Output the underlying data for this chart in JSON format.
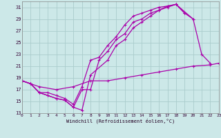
{
  "xlabel": "Windchill (Refroidissement éolien,°C)",
  "xlim": [
    0,
    23
  ],
  "ylim": [
    13,
    32
  ],
  "xticks": [
    0,
    1,
    2,
    3,
    4,
    5,
    6,
    7,
    8,
    9,
    10,
    11,
    12,
    13,
    14,
    15,
    16,
    17,
    18,
    19,
    20,
    21,
    22,
    23
  ],
  "yticks": [
    13,
    15,
    17,
    19,
    21,
    23,
    25,
    27,
    29,
    31
  ],
  "bg_color": "#cce8e8",
  "grid_color": "#aacccc",
  "line_color": "#aa00aa",
  "lines": [
    {
      "x": [
        0,
        1,
        2,
        3,
        4,
        5,
        6,
        7,
        8,
        10,
        11,
        12,
        13,
        14,
        15,
        16,
        17,
        18,
        19,
        20,
        21,
        22
      ],
      "y": [
        18.5,
        18.0,
        16.5,
        16.0,
        15.5,
        15.2,
        14.0,
        13.5,
        19.5,
        22.0,
        24.5,
        25.5,
        27.5,
        28.5,
        29.5,
        30.5,
        31.0,
        31.5,
        30.0,
        29.0,
        23.0,
        21.5
      ]
    },
    {
      "x": [
        0,
        1,
        2,
        3,
        4,
        5,
        6,
        7,
        8,
        9,
        10,
        11,
        12,
        13,
        14,
        15,
        16,
        17,
        18,
        19
      ],
      "y": [
        18.5,
        18.0,
        16.5,
        16.0,
        15.5,
        15.2,
        14.0,
        17.0,
        17.0,
        22.0,
        23.5,
        25.5,
        26.5,
        28.5,
        29.0,
        30.0,
        30.5,
        31.2,
        31.5,
        30.0
      ]
    },
    {
      "x": [
        0,
        1,
        2,
        3,
        4,
        5,
        6,
        7,
        8,
        9,
        10,
        11,
        12,
        13,
        14,
        15,
        16,
        17,
        18,
        20
      ],
      "y": [
        18.5,
        18.0,
        16.5,
        16.5,
        16.0,
        15.5,
        14.5,
        17.5,
        22.0,
        22.5,
        24.5,
        26.0,
        28.0,
        29.5,
        30.0,
        30.5,
        31.0,
        31.2,
        31.5,
        29.0
      ]
    },
    {
      "x": [
        0,
        2,
        4,
        6,
        8,
        10,
        12,
        14,
        16,
        18,
        20,
        22,
        23
      ],
      "y": [
        18.5,
        17.5,
        17.0,
        17.5,
        18.5,
        18.5,
        19.0,
        19.5,
        20.0,
        20.5,
        21.0,
        21.2,
        21.5
      ]
    }
  ],
  "linewidth": 0.9,
  "markersize": 3.5,
  "markeredgewidth": 0.8
}
